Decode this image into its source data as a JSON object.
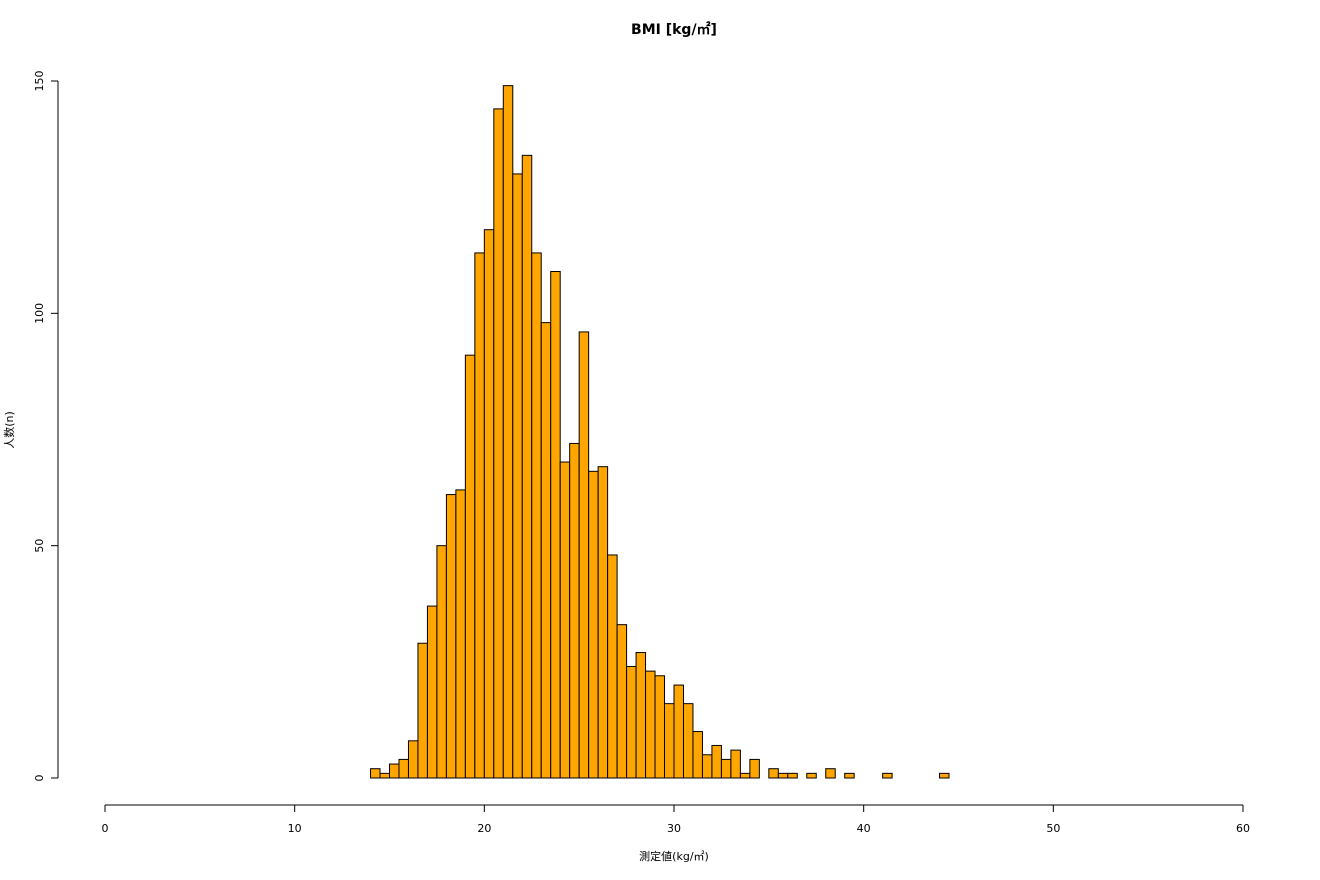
{
  "chart_data": {
    "type": "histogram",
    "title": "BMI [kg/㎡]",
    "x_label": "測定値(kg/㎡)",
    "y_label": "人数(n)",
    "color": "#ffa500",
    "bins": [
      14,
      14.5,
      15,
      15.5,
      16,
      16.5,
      17,
      17.5,
      18,
      18.5,
      19,
      19.5,
      20,
      20.5,
      21,
      21.5,
      22,
      22.5,
      23,
      23.5,
      24,
      24.5,
      25,
      25.5,
      26,
      26.5,
      27,
      27.5,
      28,
      28.5,
      29,
      29.5,
      30,
      30.5,
      31,
      31.5,
      32,
      32.5,
      33,
      33.5,
      34,
      34.5,
      35,
      35.5,
      36,
      36.5,
      37,
      37.5,
      38,
      38.5,
      39,
      39.5,
      40,
      40.5,
      41,
      41.5,
      42,
      42.5,
      43,
      43.5,
      44,
      44.5
    ],
    "values": [
      2,
      1,
      3,
      4,
      8,
      29,
      37,
      50,
      61,
      62,
      91,
      113,
      118,
      144,
      149,
      130,
      134,
      113,
      98,
      109,
      68,
      72,
      96,
      66,
      67,
      48,
      33,
      24,
      27,
      23,
      22,
      16,
      20,
      16,
      10,
      5,
      7,
      4,
      6,
      1,
      4,
      0,
      2,
      1,
      1,
      0,
      1,
      0,
      2,
      0,
      1,
      0,
      0,
      0,
      1,
      0,
      0,
      0,
      0,
      0,
      1
    ],
    "xlim": [
      0,
      60
    ],
    "xticks": [
      0,
      10,
      20,
      30,
      40,
      50,
      60
    ],
    "ylim": [
      0,
      150
    ],
    "yticks": [
      0,
      50,
      100,
      150
    ]
  }
}
